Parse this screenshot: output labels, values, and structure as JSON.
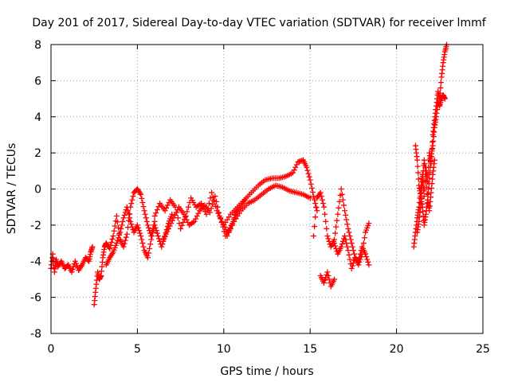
{
  "chart_data": {
    "type": "scatter",
    "title": "Day 201 of 2017, Sidereal Day-to-day VTEC variation (SDTVAR) for receiver lmmf",
    "xlabel": "GPS time / hours",
    "ylabel": "SDTVAR / TECUs",
    "xlim": [
      0,
      25
    ],
    "ylim": [
      -8,
      8
    ],
    "xticks": [
      "0",
      "5",
      "10",
      "15",
      "20",
      "25"
    ],
    "yticks": [
      "-8",
      "-6",
      "-4",
      "-2",
      "0",
      "2",
      "4",
      "6",
      "8"
    ],
    "grid": true,
    "marker": "+",
    "colors": {
      "series": "#ff0000",
      "grid": "#a0a0a0",
      "axis": "#000000"
    },
    "series": [
      {
        "name": "segment-1",
        "x": [
          0.0,
          0.1,
          0.2,
          0.3,
          0.4,
          0.6,
          0.8,
          1.0,
          1.2,
          1.4,
          1.6,
          1.8,
          2.0,
          2.2,
          2.3,
          2.4
        ],
        "y": [
          -4.4,
          -3.6,
          -4.6,
          -3.9,
          -4.3,
          -4.0,
          -4.4,
          -4.2,
          -4.6,
          -4.0,
          -4.5,
          -4.2,
          -3.8,
          -4.0,
          -3.5,
          -3.2
        ]
      },
      {
        "name": "segment-2",
        "x": [
          2.5,
          2.6,
          2.7,
          2.8,
          2.9,
          3.0,
          3.1,
          3.2,
          3.4,
          3.6,
          3.8,
          4.0,
          4.2,
          4.4,
          4.6,
          4.8,
          5.0,
          5.2,
          5.4,
          5.6,
          5.8,
          6.0
        ],
        "y": [
          -6.4,
          -5.5,
          -4.6,
          -5.0,
          -4.8,
          -3.8,
          -3.2,
          -3.0,
          -3.3,
          -2.6,
          -1.5,
          -2.8,
          -3.2,
          -2.5,
          -1.0,
          -0.2,
          0.0,
          -0.3,
          -1.2,
          -2.0,
          -2.6,
          -1.8
        ]
      },
      {
        "name": "segment-3",
        "x": [
          3.2,
          3.4,
          3.6,
          3.8,
          4.0,
          4.2,
          4.4,
          4.6,
          4.8,
          5.0,
          5.2,
          5.4,
          5.6,
          5.8,
          6.0,
          6.2,
          6.4,
          6.6,
          6.8,
          7.0
        ],
        "y": [
          -4.2,
          -3.8,
          -3.5,
          -3.0,
          -2.4,
          -1.6,
          -1.0,
          -1.8,
          -2.4,
          -2.0,
          -2.6,
          -3.4,
          -3.8,
          -2.8,
          -2.0,
          -2.6,
          -3.2,
          -2.6,
          -1.9,
          -1.4
        ]
      },
      {
        "name": "segment-4",
        "x": [
          6.0,
          6.3,
          6.6,
          6.9,
          7.2,
          7.5,
          7.8,
          8.1,
          8.4,
          8.7,
          9.0,
          9.3,
          9.6,
          9.9,
          10.2,
          10.5,
          10.8
        ],
        "y": [
          -1.5,
          -0.8,
          -1.2,
          -0.6,
          -1.0,
          -2.2,
          -1.5,
          -0.5,
          -1.0,
          -0.8,
          -1.4,
          -0.2,
          -1.2,
          -1.8,
          -2.4,
          -1.9,
          -1.0
        ]
      },
      {
        "name": "segment-5",
        "x": [
          6.5,
          6.8,
          7.1,
          7.4,
          7.7,
          8.0,
          8.3,
          8.6,
          8.9,
          9.2,
          9.5,
          9.8,
          10.1,
          10.4,
          10.7,
          11.0,
          11.3
        ],
        "y": [
          -2.8,
          -2.2,
          -1.6,
          -1.0,
          -1.4,
          -2.0,
          -1.8,
          -1.2,
          -0.9,
          -1.3,
          -0.4,
          -1.6,
          -2.6,
          -2.2,
          -1.4,
          -0.9,
          -0.5
        ]
      },
      {
        "name": "segment-6",
        "x": [
          10.0,
          10.4,
          10.8,
          11.2,
          11.6,
          12.0,
          12.4,
          12.8,
          13.2,
          13.6,
          14.0,
          14.3,
          14.6,
          14.8,
          15.0,
          15.2,
          15.4
        ],
        "y": [
          -2.0,
          -1.4,
          -1.0,
          -0.6,
          -0.2,
          0.2,
          0.5,
          0.6,
          0.6,
          0.7,
          0.9,
          1.5,
          1.6,
          1.2,
          0.5,
          -0.4,
          -1.2
        ]
      },
      {
        "name": "segment-7",
        "x": [
          10.2,
          10.6,
          11.0,
          11.4,
          11.8,
          12.2,
          12.6,
          13.0,
          13.4,
          13.8,
          14.2,
          14.6,
          15.0
        ],
        "y": [
          -2.6,
          -1.8,
          -1.2,
          -0.8,
          -0.6,
          -0.3,
          0.0,
          0.2,
          0.1,
          -0.1,
          -0.2,
          -0.3,
          -0.5
        ]
      },
      {
        "name": "segment-8",
        "x": [
          15.2,
          15.4,
          15.6,
          15.8,
          16.0,
          16.2,
          16.4,
          16.6,
          16.8,
          17.0,
          17.2,
          17.4,
          17.6,
          17.8,
          18.0,
          18.2,
          18.4
        ],
        "y": [
          -2.6,
          -0.5,
          -0.2,
          -1.0,
          -2.6,
          -3.2,
          -2.8,
          -1.4,
          0.0,
          -1.2,
          -2.2,
          -3.0,
          -3.8,
          -4.2,
          -3.6,
          -2.4,
          -1.9
        ]
      },
      {
        "name": "segment-9",
        "x": [
          15.6,
          15.8,
          16.0,
          16.2,
          16.4
        ],
        "y": [
          -4.8,
          -5.2,
          -4.6,
          -5.4,
          -5.0
        ]
      },
      {
        "name": "segment-10",
        "x": [
          16.4,
          16.6,
          16.8,
          17.0,
          17.2,
          17.4,
          17.6,
          17.8,
          18.0,
          18.2,
          18.4
        ],
        "y": [
          -3.0,
          -3.6,
          -3.2,
          -2.6,
          -3.4,
          -4.4,
          -3.8,
          -4.0,
          -3.2,
          -3.6,
          -4.2
        ]
      },
      {
        "name": "segment-11",
        "x": [
          21.0,
          21.1,
          21.2,
          21.3,
          21.4,
          21.5,
          21.6,
          21.7,
          21.8,
          21.9,
          22.0,
          22.1,
          22.2,
          22.3,
          22.4,
          22.5,
          22.6,
          22.7,
          22.8,
          22.9
        ],
        "y": [
          -3.2,
          -2.4,
          -1.6,
          -1.0,
          0.0,
          0.8,
          -0.4,
          1.2,
          0.4,
          2.0,
          1.4,
          3.0,
          3.8,
          4.6,
          5.4,
          5.0,
          6.2,
          7.0,
          7.6,
          8.0
        ]
      },
      {
        "name": "segment-12",
        "x": [
          21.1,
          21.2,
          21.3,
          21.4,
          21.5,
          21.6,
          21.7,
          21.8,
          21.9,
          22.0,
          22.1,
          22.2,
          22.3,
          22.4,
          22.5,
          22.6,
          22.7,
          22.8
        ],
        "y": [
          2.4,
          1.6,
          0.2,
          -0.4,
          -1.0,
          -2.0,
          -1.4,
          -0.6,
          0.6,
          1.8,
          2.4,
          3.4,
          4.0,
          4.8,
          4.6,
          5.0,
          5.2,
          5.0
        ]
      },
      {
        "name": "segment-13",
        "x": [
          21.2,
          21.3,
          21.4,
          21.5,
          21.6,
          21.7,
          21.8,
          21.9,
          22.0,
          22.1,
          22.2
        ],
        "y": [
          -2.4,
          -1.8,
          -0.8,
          0.4,
          1.6,
          0.8,
          -0.6,
          -1.2,
          -0.2,
          0.8,
          1.6
        ]
      }
    ]
  }
}
